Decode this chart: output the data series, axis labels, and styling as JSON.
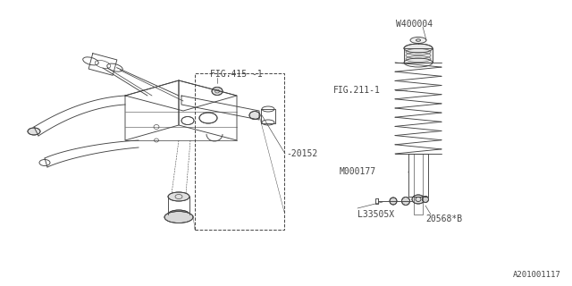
{
  "bg_color": "#ffffff",
  "line_color": "#444444",
  "text_color": "#444444",
  "part_numbers": {
    "FIG415": "FIG.415 -1",
    "FIG211": "FIG.211-1",
    "W400004": "W400004",
    "M000177": "M000177",
    "L33505X": "L33505X",
    "20568B": "20568*B",
    "20152": "20152"
  },
  "watermark": "A201001117",
  "font_size": 7.0,
  "lw": 0.65
}
